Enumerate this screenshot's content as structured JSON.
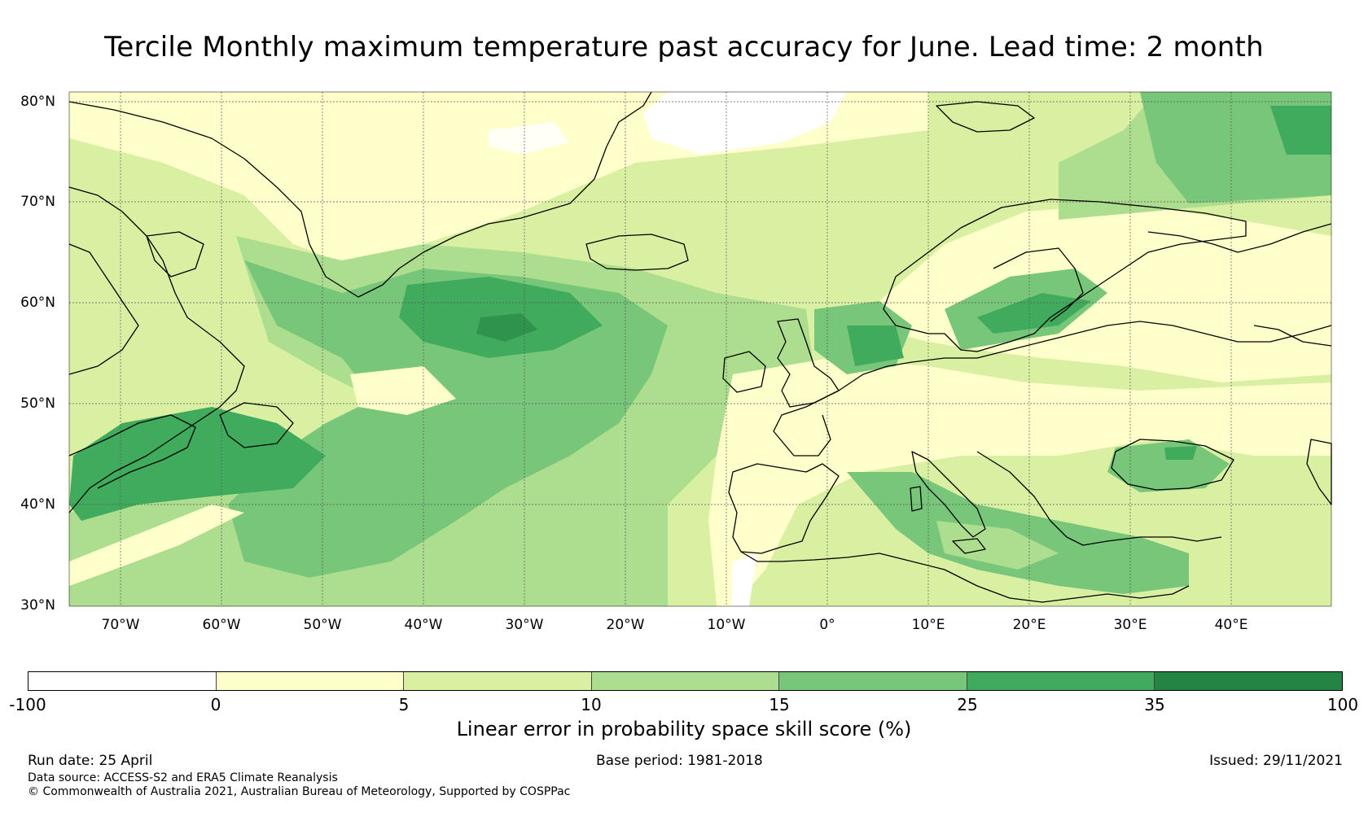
{
  "title": "Tercile Monthly maximum temperature past accuracy for June. Lead time: 2 month",
  "map": {
    "lat_labels": [
      "80°N",
      "70°N",
      "60°N",
      "50°N",
      "40°N",
      "30°N"
    ],
    "lon_labels": [
      "70°W",
      "60°W",
      "50°W",
      "40°W",
      "30°W",
      "20°W",
      "10°W",
      "0°",
      "10°E",
      "20°E",
      "30°E",
      "40°E"
    ],
    "lat_range": [
      30,
      81
    ],
    "lon_range": [
      -75,
      50
    ]
  },
  "colorbar": {
    "ticks": [
      "-100",
      "0",
      "5",
      "10",
      "15",
      "25",
      "35",
      "100"
    ],
    "colors": [
      "#ffffff",
      "#ffffcc",
      "#d9f0a3",
      "#addd8e",
      "#78c679",
      "#41ab5d",
      "#238443"
    ],
    "label": "Linear error in probability space skill score (%)"
  },
  "footer": {
    "run_date": "Run date: 25 April",
    "base_period": "Base period: 1981-2018",
    "issued": "Issued: 29/11/2021",
    "data_source": "Data source: ACCESS-S2 and ERA5 Climate Reanalysis",
    "copyright": "© Commonwealth of Australia 2021, Australian Bureau of Meteorology, Supported by COSPPac"
  }
}
